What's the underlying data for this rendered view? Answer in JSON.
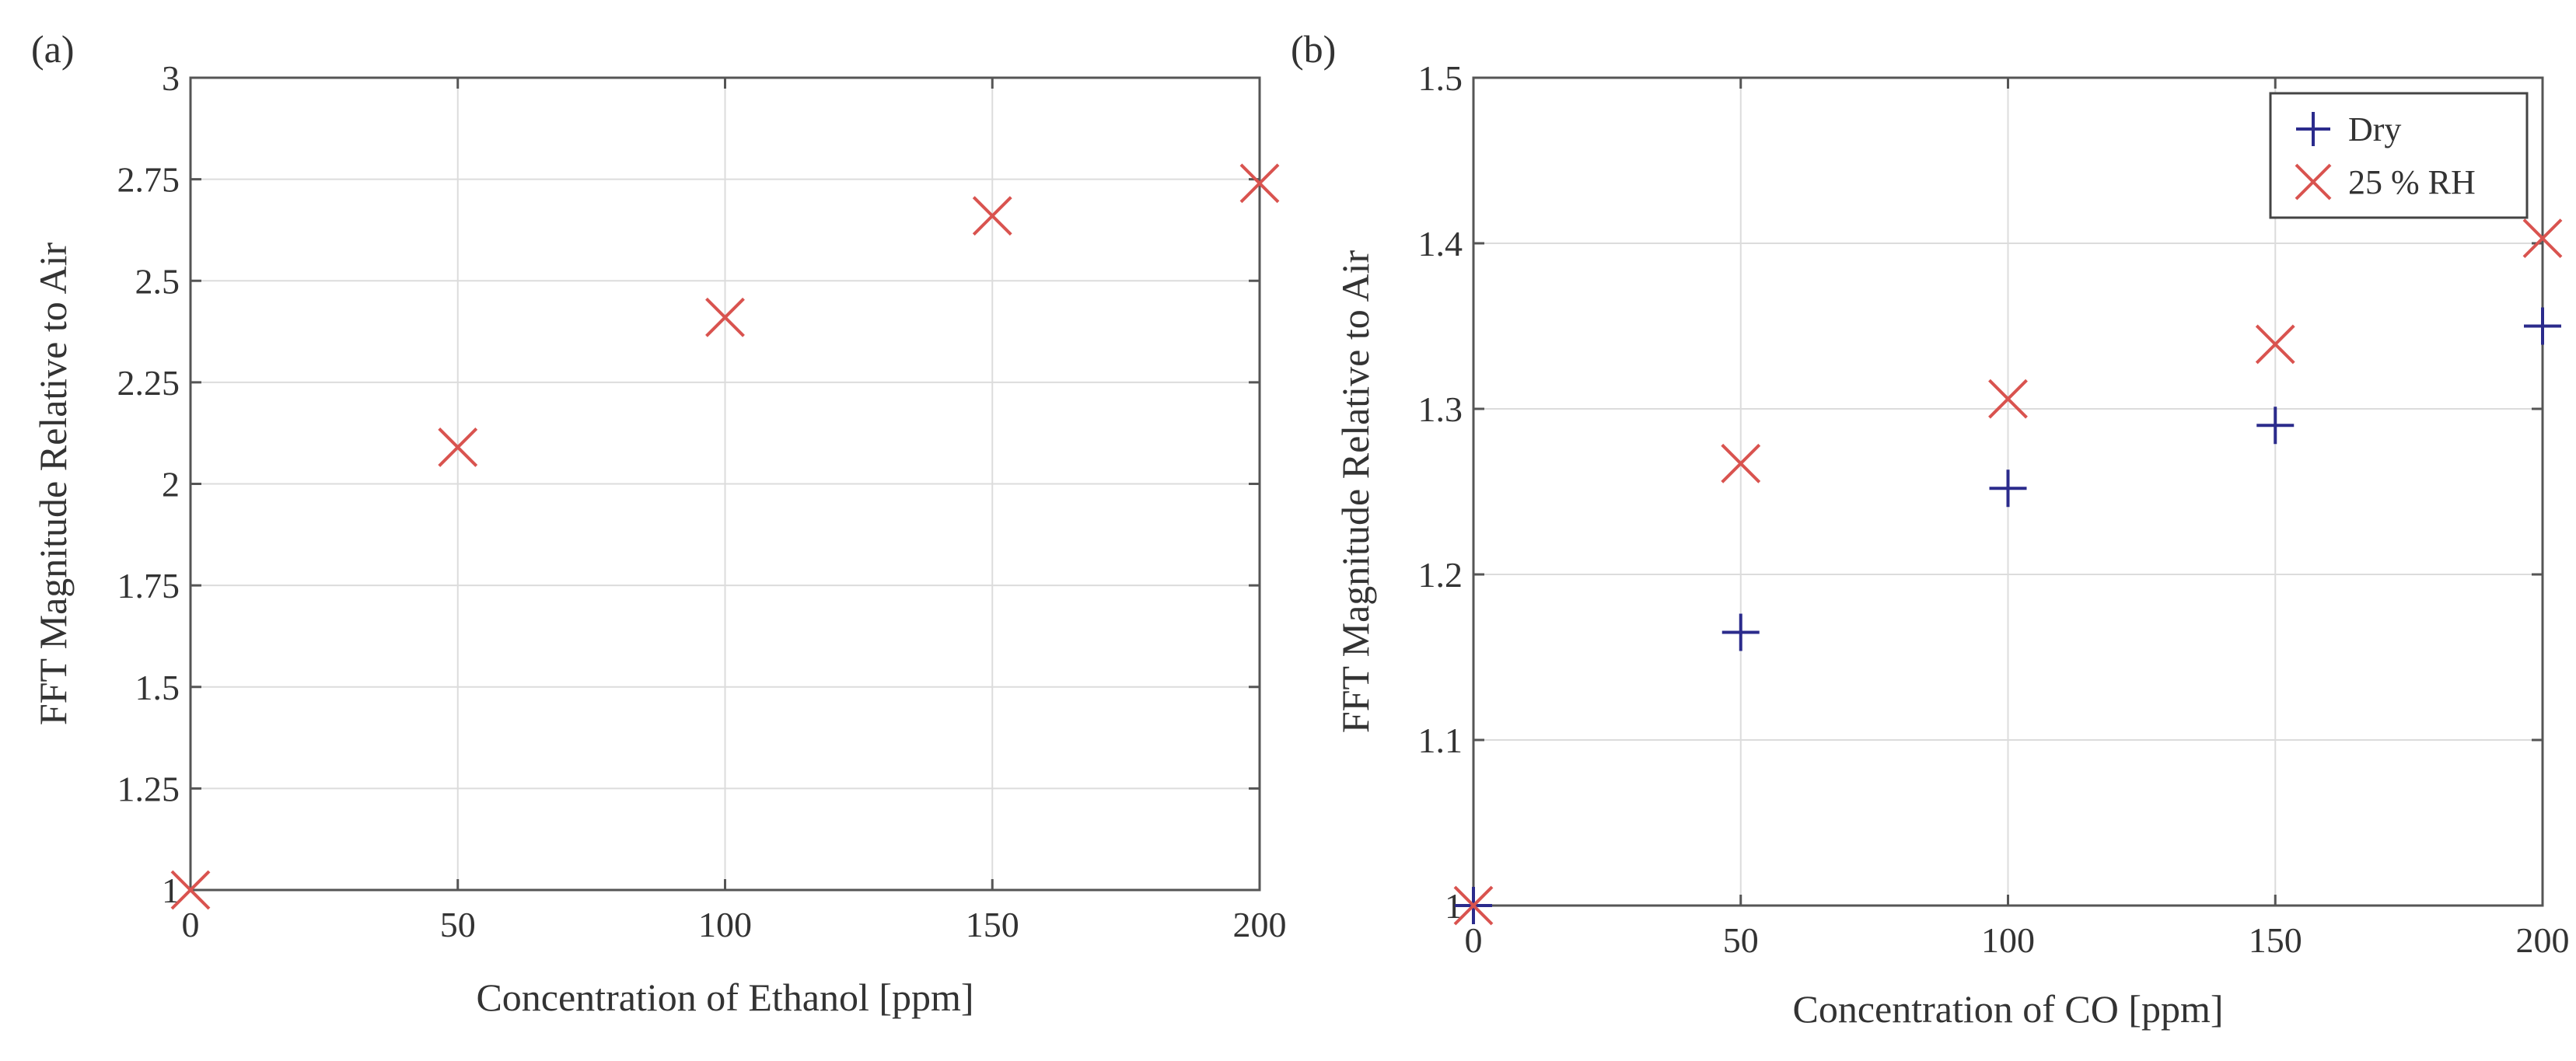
{
  "chart_data": [
    {
      "type": "scatter",
      "panel_label": "(a)",
      "xlabel": "Concentration of Ethanol [ppm]",
      "ylabel": "FFT Magnitude Relative to Air",
      "xlim": [
        0,
        200
      ],
      "ylim": [
        1,
        3
      ],
      "xticks": [
        "0",
        "50",
        "100",
        "150",
        "200"
      ],
      "yticks": [
        "1",
        "1.25",
        "1.5",
        "1.75",
        "2",
        "2.25",
        "2.5",
        "2.75",
        "3"
      ],
      "grid": true,
      "legend": null,
      "series": [
        {
          "marker": "x",
          "color": "#d9534f",
          "points": [
            {
              "x": 0,
              "y": 1.0
            },
            {
              "x": 50,
              "y": 2.09
            },
            {
              "x": 100,
              "y": 2.41
            },
            {
              "x": 150,
              "y": 2.66
            },
            {
              "x": 200,
              "y": 2.74
            }
          ]
        }
      ]
    },
    {
      "type": "scatter",
      "panel_label": "(b)",
      "xlabel": "Concentration of CO [ppm]",
      "ylabel": "FFT Magnitude Relative to Air",
      "xlim": [
        0,
        200
      ],
      "ylim": [
        1,
        1.5
      ],
      "xticks": [
        "0",
        "50",
        "100",
        "150",
        "200"
      ],
      "yticks": [
        "1",
        "1.1",
        "1.2",
        "1.3",
        "1.4",
        "1.5"
      ],
      "grid": true,
      "legend": "top-right",
      "series": [
        {
          "name": "Dry",
          "marker": "+",
          "color": "#2b2b8c",
          "points": [
            {
              "x": 0,
              "y": 1.0
            },
            {
              "x": 50,
              "y": 1.165
            },
            {
              "x": 100,
              "y": 1.252
            },
            {
              "x": 150,
              "y": 1.29
            },
            {
              "x": 200,
              "y": 1.35
            }
          ]
        },
        {
          "name": "25 % RH",
          "marker": "x",
          "color": "#d9534f",
          "points": [
            {
              "x": 0,
              "y": 1.0
            },
            {
              "x": 50,
              "y": 1.267
            },
            {
              "x": 100,
              "y": 1.306
            },
            {
              "x": 150,
              "y": 1.339
            },
            {
              "x": 200,
              "y": 1.403
            }
          ]
        }
      ]
    }
  ]
}
